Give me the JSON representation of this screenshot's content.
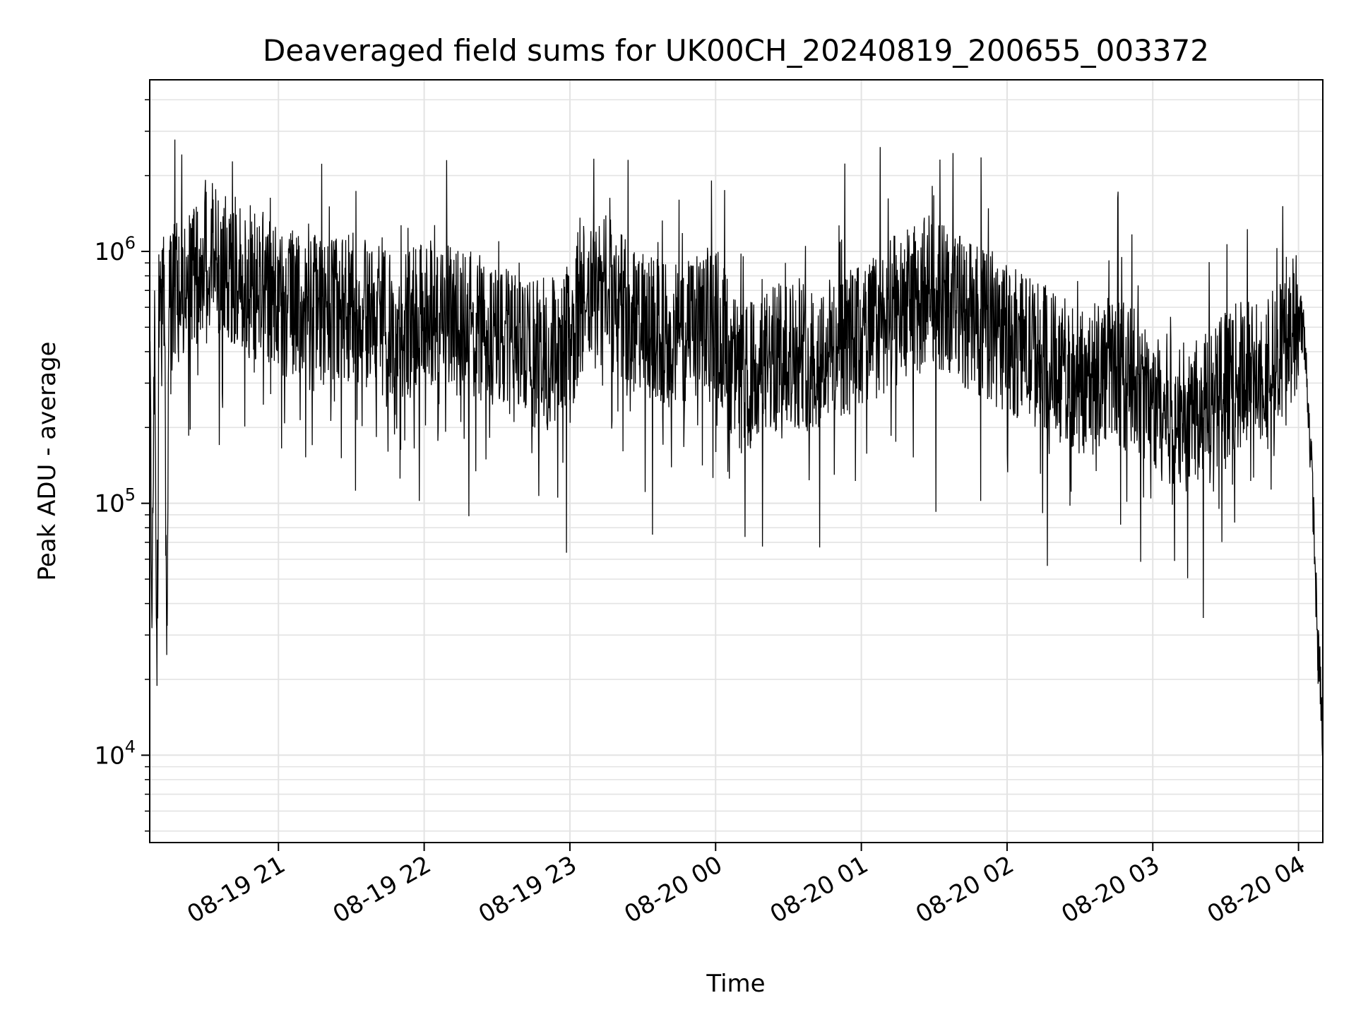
{
  "chart_data": {
    "type": "line",
    "title": "Deaveraged field sums for UK00CH_20240819_200655_003372",
    "xlabel": "Time",
    "ylabel": "Peak ADU - average",
    "yscale": "log",
    "ylim": [
      4500,
      4800000
    ],
    "xlim": [
      "2024-08-19 20:07:00",
      "2024-08-20 04:10:00"
    ],
    "grid": true,
    "legend": "none",
    "line_color": "#000000",
    "x_ticks": [
      {
        "value": "2024-08-19 21:00",
        "label": "08-19 21"
      },
      {
        "value": "2024-08-19 22:00",
        "label": "08-19 22"
      },
      {
        "value": "2024-08-19 23:00",
        "label": "08-19 23"
      },
      {
        "value": "2024-08-20 00:00",
        "label": "08-20 00"
      },
      {
        "value": "2024-08-20 01:00",
        "label": "08-20 01"
      },
      {
        "value": "2024-08-20 02:00",
        "label": "08-20 02"
      },
      {
        "value": "2024-08-20 03:00",
        "label": "08-20 03"
      },
      {
        "value": "2024-08-20 04:00",
        "label": "08-20 04"
      }
    ],
    "y_ticks": [
      {
        "value": 10000,
        "base": "10",
        "exp": "4"
      },
      {
        "value": 100000,
        "base": "10",
        "exp": "5"
      },
      {
        "value": 1000000,
        "base": "10",
        "exp": "6"
      }
    ],
    "series": [
      {
        "x": [
          "2024-08-19 20:07",
          "2024-08-19 20:08",
          "2024-08-19 20:09",
          "2024-08-19 20:10",
          "2024-08-19 20:11",
          "2024-08-19 20:12",
          "2024-08-19 20:13",
          "2024-08-19 20:14",
          "2024-08-19 20:15",
          "2024-08-19 20:17",
          "2024-08-19 20:20",
          "2024-08-19 20:25",
          "2024-08-19 20:30",
          "2024-08-19 20:35",
          "2024-08-19 20:40",
          "2024-08-19 20:45",
          "2024-08-19 20:50",
          "2024-08-19 20:55",
          "2024-08-19 21:00",
          "2024-08-19 21:10",
          "2024-08-19 21:20",
          "2024-08-19 21:30",
          "2024-08-19 21:40",
          "2024-08-19 21:50",
          "2024-08-19 22:00",
          "2024-08-19 22:10",
          "2024-08-19 22:20",
          "2024-08-19 22:30",
          "2024-08-19 22:40",
          "2024-08-19 22:50",
          "2024-08-19 23:00",
          "2024-08-19 23:05",
          "2024-08-19 23:15",
          "2024-08-19 23:30",
          "2024-08-19 23:45",
          "2024-08-20 00:00",
          "2024-08-20 00:10",
          "2024-08-20 00:20",
          "2024-08-20 00:30",
          "2024-08-20 00:40",
          "2024-08-20 00:50",
          "2024-08-20 01:00",
          "2024-08-20 01:15",
          "2024-08-20 01:30",
          "2024-08-20 01:45",
          "2024-08-20 02:00",
          "2024-08-20 02:15",
          "2024-08-20 02:30",
          "2024-08-20 02:45",
          "2024-08-20 03:00",
          "2024-08-20 03:15",
          "2024-08-20 03:30",
          "2024-08-20 03:45",
          "2024-08-20 03:55",
          "2024-08-20 04:00",
          "2024-08-20 04:02",
          "2024-08-20 04:04",
          "2024-08-20 04:06",
          "2024-08-20 04:08",
          "2024-08-20 04:09",
          "2024-08-20 04:10"
        ],
        "y": [
          400000,
          38000,
          700000,
          22000,
          800000,
          500000,
          650000,
          25000,
          600000,
          650000,
          700000,
          800000,
          1000000,
          900000,
          850000,
          800000,
          750000,
          700000,
          650000,
          600000,
          550000,
          600000,
          550000,
          500000,
          600000,
          550000,
          500000,
          450000,
          400000,
          380000,
          450000,
          600000,
          700000,
          500000,
          450000,
          550000,
          300000,
          350000,
          400000,
          380000,
          420000,
          450000,
          600000,
          700000,
          550000,
          450000,
          380000,
          300000,
          350000,
          250000,
          220000,
          300000,
          350000,
          400000,
          600000,
          500000,
          250000,
          100000,
          25000,
          20000,
          10000
        ]
      }
    ]
  }
}
